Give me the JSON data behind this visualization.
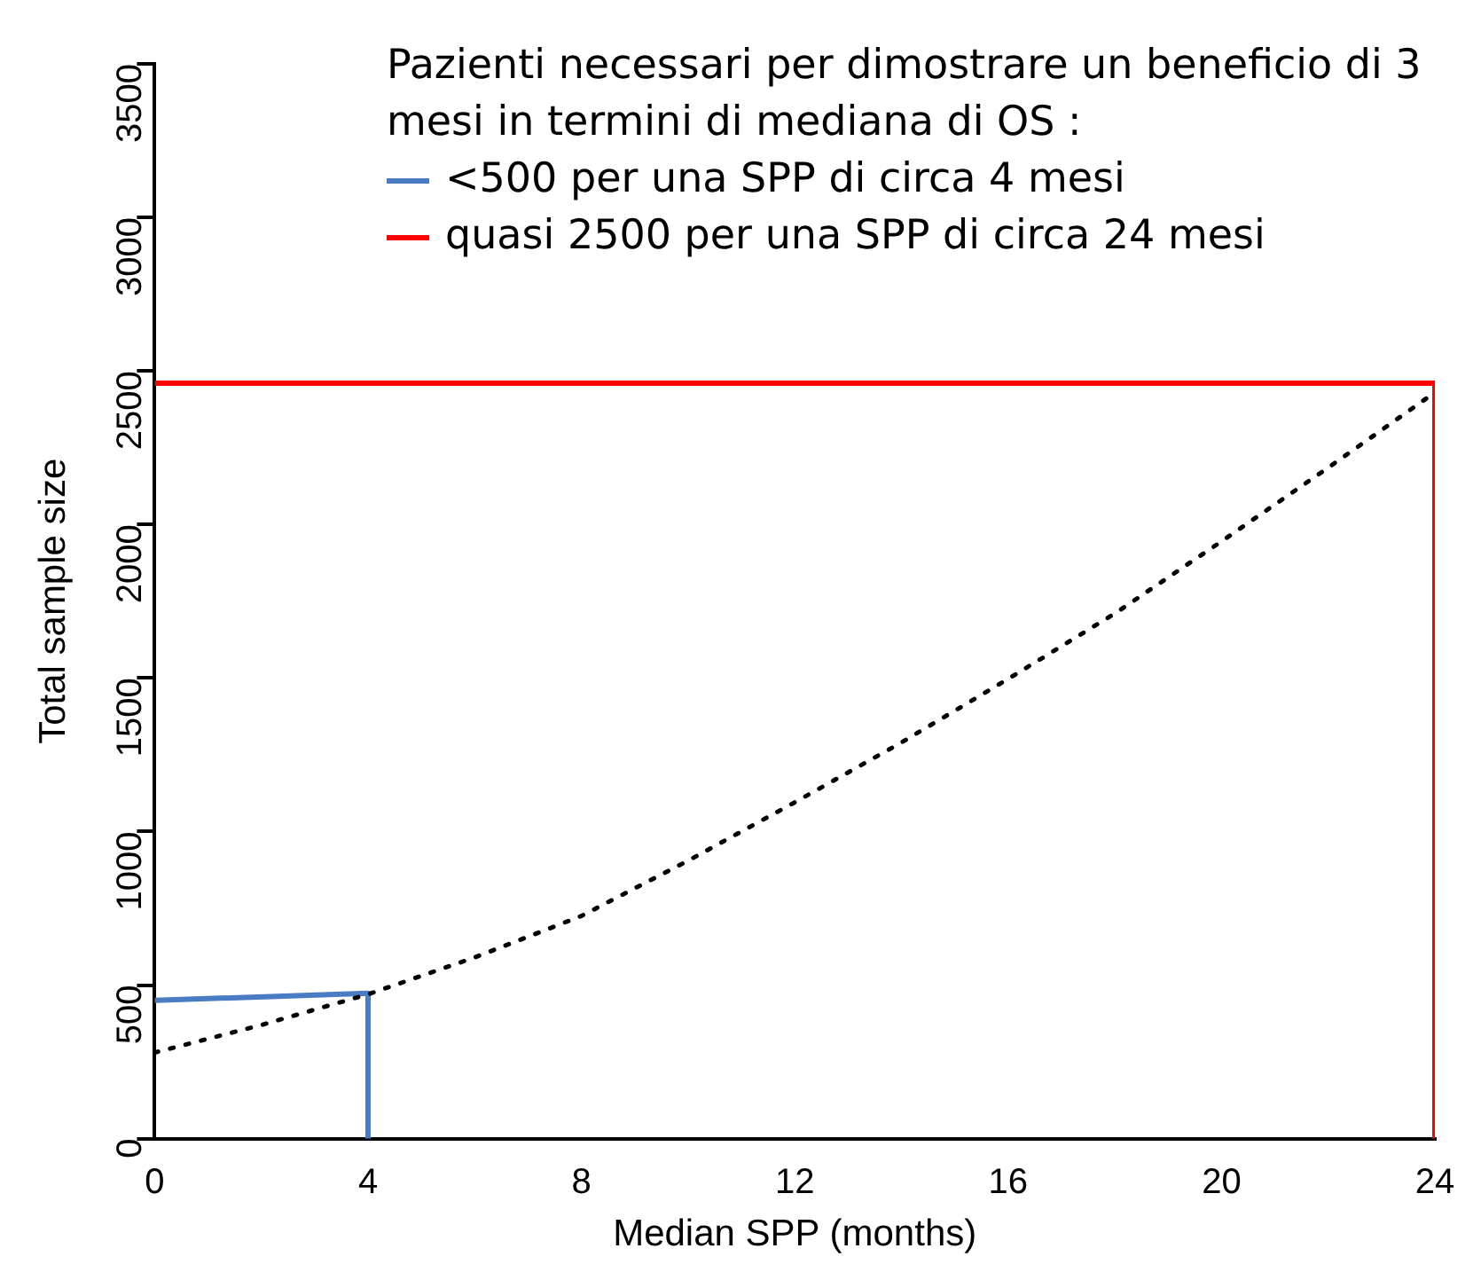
{
  "chart_data": {
    "type": "line",
    "xlabel": "Median SPP (months)",
    "ylabel": "Total sample size",
    "legend_title": "Pazienti necessari per dimostrare un beneficio di 3 mesi in termini di mediana di OS :",
    "legend": "top right",
    "grid": false,
    "marker": "none",
    "xlim": [
      0,
      24
    ],
    "xticks": [
      0,
      4,
      8,
      12,
      16,
      20,
      24
    ],
    "ylim": [
      0,
      3500
    ],
    "yticks": [
      0,
      500,
      1000,
      1500,
      2000,
      2500,
      3000,
      3500
    ],
    "series": [
      {
        "color": "#000000",
        "line_style": "dotted",
        "x": [
          0,
          2,
          4,
          6,
          8,
          10,
          12,
          14,
          16,
          18,
          20,
          22,
          24
        ],
        "values": [
          280,
          370,
          470,
          590,
          725,
          905,
          1095,
          1290,
          1497,
          1710,
          1945,
          2185,
          2430
        ]
      },
      {
        "name": "<500 per una SPP di circa 4 mesi",
        "color": "#4a7cc4",
        "line_style": "solid",
        "x": [
          0,
          4,
          4
        ],
        "values": [
          450,
          473,
          0
        ]
      },
      {
        "name": "quasi 2500 per una SPP di circa 24 mesi",
        "color": "#ff0000",
        "line_style": "solid",
        "x": [
          0,
          24,
          24
        ],
        "values": [
          2460,
          2460,
          0
        ]
      }
    ]
  }
}
